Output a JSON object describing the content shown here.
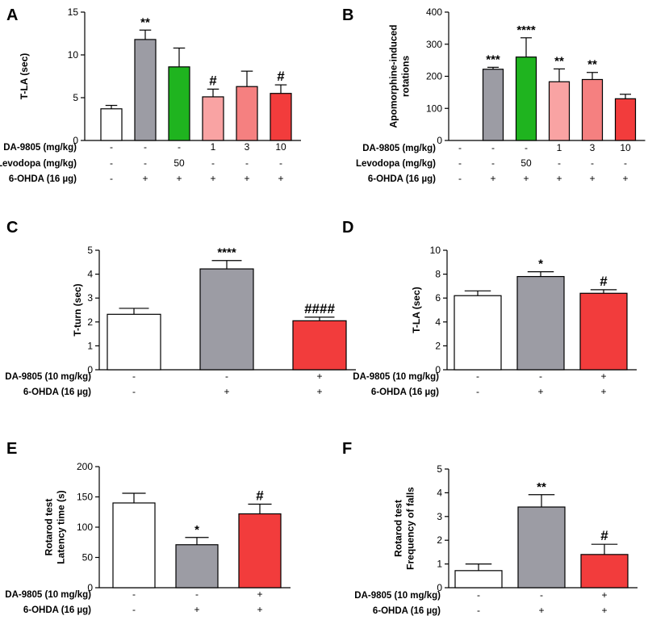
{
  "colors": {
    "white": "#ffffff",
    "gray": "#9c9ca4",
    "green": "#1fb41f",
    "light_pink": "#f9a3a3",
    "pink": "#f58080",
    "red": "#f23c3c",
    "ink": "#000000"
  },
  "chart_data": [
    {
      "panel": "A",
      "type": "bar",
      "ylabel": "T-LA (sec)",
      "ylim": [
        0,
        15
      ],
      "yticks": [
        0,
        5,
        10,
        15
      ],
      "values": [
        3.7,
        11.8,
        8.6,
        5.1,
        6.3,
        5.5
      ],
      "errors": [
        0.4,
        1.1,
        2.2,
        0.9,
        1.8,
        1.0
      ],
      "colors": [
        "white",
        "gray",
        "green",
        "light_pink",
        "pink",
        "red"
      ],
      "annotations": [
        "",
        "**",
        "",
        "#",
        "",
        "#"
      ],
      "conditions": [
        {
          "label": "DA-9805 (mg/kg)",
          "values": [
            "-",
            "-",
            "-",
            "1",
            "3",
            "10"
          ]
        },
        {
          "label": "Levodopa (mg/kg)",
          "values": [
            "-",
            "-",
            "50",
            "-",
            "-",
            "-"
          ]
        },
        {
          "label": "6-OHDA  (16 µg)",
          "values": [
            "-",
            "+",
            "+",
            "+",
            "+",
            "+"
          ]
        }
      ]
    },
    {
      "panel": "B",
      "type": "bar",
      "ylabel": [
        "Apomorphine-induced",
        "rotations"
      ],
      "ylim": [
        0,
        400
      ],
      "yticks": [
        0,
        100,
        200,
        300,
        400
      ],
      "values": [
        0,
        222,
        260,
        183,
        190,
        130
      ],
      "errors": [
        0,
        6,
        60,
        40,
        22,
        14
      ],
      "colors": [
        "white",
        "gray",
        "green",
        "light_pink",
        "pink",
        "red"
      ],
      "annotations": [
        "",
        "***",
        "****",
        "**",
        "**",
        ""
      ],
      "conditions": [
        {
          "label": "DA-9805 (mg/kg)",
          "values": [
            "-",
            "-",
            "-",
            "1",
            "3",
            "10"
          ]
        },
        {
          "label": "Levodopa (mg/kg)",
          "values": [
            "-",
            "-",
            "50",
            "-",
            "-",
            "-"
          ]
        },
        {
          "label": "6-OHDA  (16 µg)",
          "values": [
            "-",
            "+",
            "+",
            "+",
            "+",
            "+"
          ]
        }
      ]
    },
    {
      "panel": "C",
      "type": "bar",
      "ylabel": "T-turn (sec)",
      "ylim": [
        0,
        5
      ],
      "yticks": [
        0,
        1,
        2,
        3,
        4,
        5
      ],
      "values": [
        2.32,
        4.22,
        2.05
      ],
      "errors": [
        0.25,
        0.35,
        0.15
      ],
      "colors": [
        "white",
        "gray",
        "red"
      ],
      "annotations": [
        "",
        "****",
        "####"
      ],
      "conditions": [
        {
          "label": "DA-9805 (10 mg/kg)",
          "values": [
            "-",
            "-",
            "+"
          ]
        },
        {
          "label": "6-OHDA  (16 µg)",
          "values": [
            "-",
            "+",
            "+"
          ]
        }
      ]
    },
    {
      "panel": "D",
      "type": "bar",
      "ylabel": "T-LA (sec)",
      "ylim": [
        0,
        10
      ],
      "yticks": [
        0,
        2,
        4,
        6,
        8,
        10
      ],
      "values": [
        6.2,
        7.8,
        6.4
      ],
      "errors": [
        0.4,
        0.4,
        0.3
      ],
      "colors": [
        "white",
        "gray",
        "red"
      ],
      "annotations": [
        "",
        "*",
        "#"
      ],
      "conditions": [
        {
          "label": "DA-9805 (10 mg/kg)",
          "values": [
            "-",
            "-",
            "+"
          ]
        },
        {
          "label": "6-OHDA  (16 µg)",
          "values": [
            "-",
            "+",
            "+"
          ]
        }
      ]
    },
    {
      "panel": "E",
      "type": "bar",
      "ylabel": [
        "Rotarod test",
        "Latency time (s)"
      ],
      "ylim": [
        0,
        200
      ],
      "yticks": [
        0,
        50,
        100,
        150,
        200
      ],
      "values": [
        140,
        71,
        122
      ],
      "errors": [
        16,
        12,
        16
      ],
      "colors": [
        "white",
        "gray",
        "red"
      ],
      "annotations": [
        "",
        "*",
        "#"
      ],
      "conditions": [
        {
          "label": "DA-9805 (10 mg/kg)",
          "values": [
            "-",
            "-",
            "+"
          ]
        },
        {
          "label": "6-OHDA  (16 µg)",
          "values": [
            "-",
            "+",
            "+"
          ]
        }
      ]
    },
    {
      "panel": "F",
      "type": "bar",
      "ylabel": [
        "Rotarod test",
        "Frequency of falls"
      ],
      "ylim": [
        0,
        5
      ],
      "yticks": [
        0,
        1,
        2,
        3,
        4,
        5
      ],
      "values": [
        0.72,
        3.4,
        1.4
      ],
      "errors": [
        0.28,
        0.52,
        0.43
      ],
      "colors": [
        "white",
        "gray",
        "red"
      ],
      "annotations": [
        "",
        "**",
        "#"
      ],
      "conditions": [
        {
          "label": "DA-9805 (10 mg/kg)",
          "values": [
            "-",
            "-",
            "+"
          ]
        },
        {
          "label": "6-OHDA  (16 µg)",
          "values": [
            "-",
            "+",
            "+"
          ]
        }
      ]
    }
  ]
}
